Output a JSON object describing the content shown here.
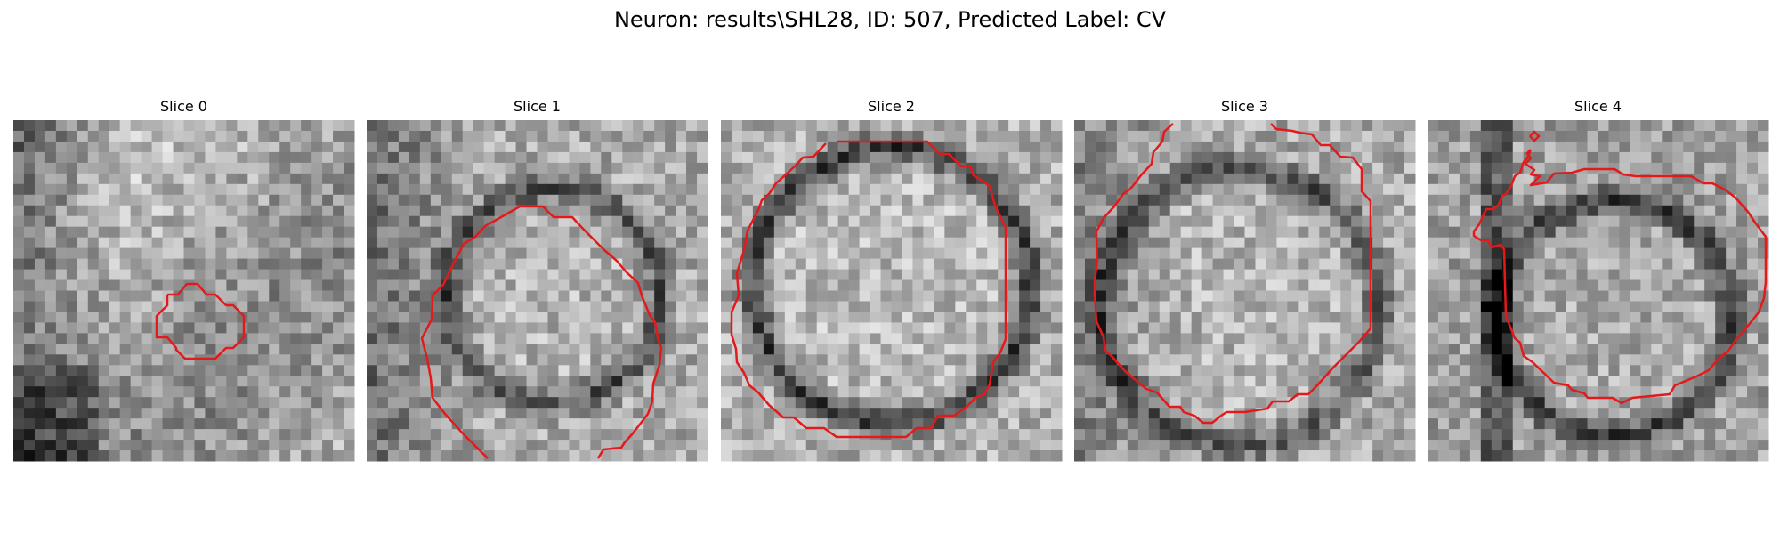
{
  "figure": {
    "title": "Neuron: results\\SHL28, ID: 507, Predicted Label: CV",
    "contour_color": "#e31a1c",
    "colormap": "gray"
  },
  "panels": [
    {
      "title": "Slice 0"
    },
    {
      "title": "Slice 1"
    },
    {
      "title": "Slice 2"
    },
    {
      "title": "Slice 3"
    },
    {
      "title": "Slice 4"
    }
  ]
}
